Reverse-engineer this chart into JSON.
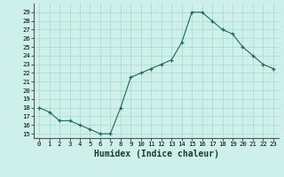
{
  "x": [
    0,
    1,
    2,
    3,
    4,
    5,
    6,
    7,
    8,
    9,
    10,
    11,
    12,
    13,
    14,
    15,
    16,
    17,
    18,
    19,
    20,
    21,
    22,
    23
  ],
  "y": [
    18,
    17.5,
    16.5,
    16.5,
    16,
    15.5,
    15,
    15,
    18,
    21.5,
    22,
    22.5,
    23,
    23.5,
    25.5,
    29,
    29,
    28,
    27,
    26.5,
    25,
    24,
    23,
    22.5
  ],
  "line_color": "#1a6b5a",
  "marker_color": "#1a6b5a",
  "bg_color": "#cef0ea",
  "grid_color": "#a8d8d0",
  "xlabel": "Humidex (Indice chaleur)",
  "ylim": [
    14.5,
    30
  ],
  "xlim": [
    -0.5,
    23.5
  ],
  "yticks": [
    15,
    16,
    17,
    18,
    19,
    20,
    21,
    22,
    23,
    24,
    25,
    26,
    27,
    28,
    29
  ],
  "xticks": [
    0,
    1,
    2,
    3,
    4,
    5,
    6,
    7,
    8,
    9,
    10,
    11,
    12,
    13,
    14,
    15,
    16,
    17,
    18,
    19,
    20,
    21,
    22,
    23
  ],
  "tick_fontsize": 5.2,
  "label_fontsize": 7.0
}
